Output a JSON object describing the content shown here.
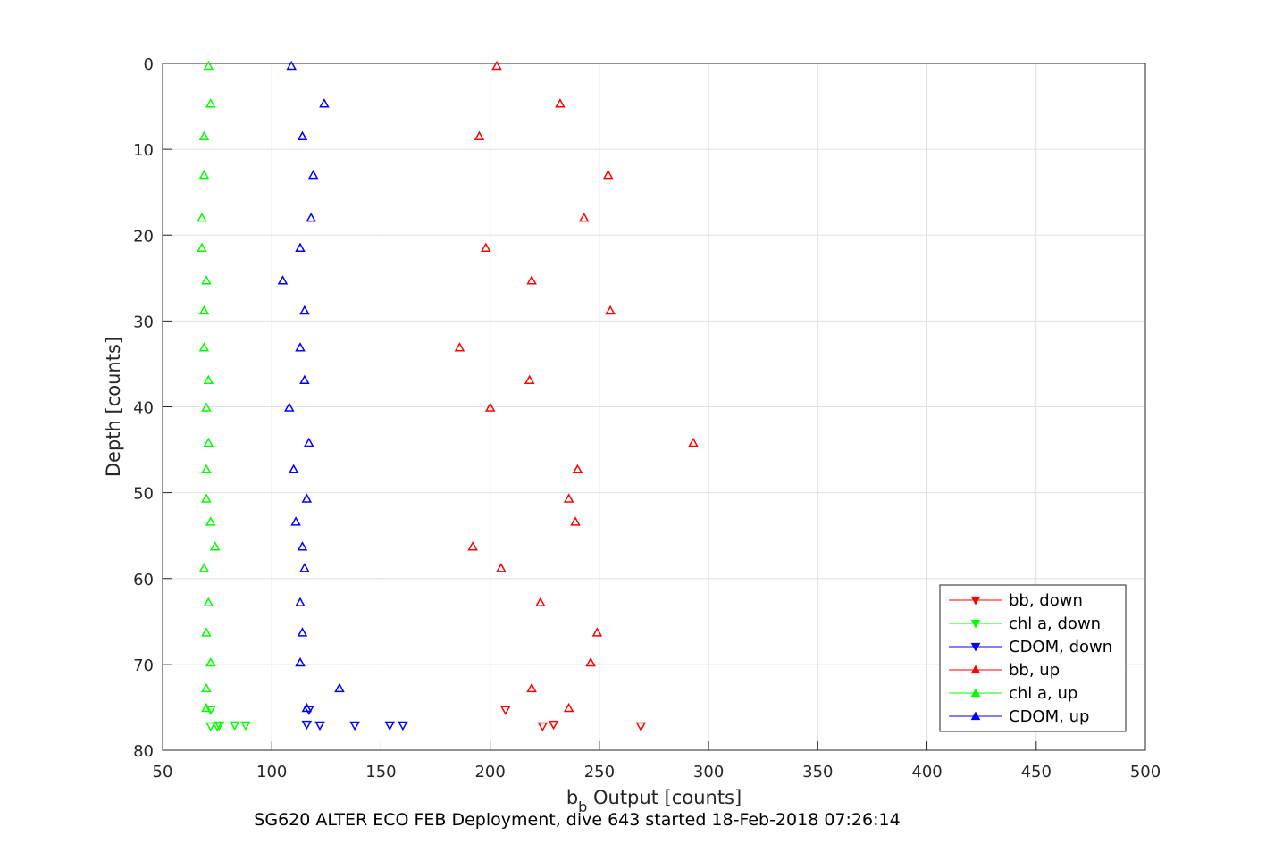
{
  "chart_data": {
    "type": "scatter",
    "xlabel": {
      "base": "b",
      "sub": "b",
      "rest": " Output [counts]"
    },
    "ylabel": "Depth [counts]",
    "footer": "SG620 ALTER ECO FEB Deployment, dive 643 started 18-Feb-2018 07:26:14",
    "xlim": [
      50,
      500
    ],
    "ylim": [
      0,
      80
    ],
    "y_reversed": true,
    "xticks": [
      50,
      100,
      150,
      200,
      250,
      300,
      350,
      400,
      450,
      500
    ],
    "yticks": [
      0,
      10,
      20,
      30,
      40,
      50,
      60,
      70,
      80
    ],
    "grid": true,
    "legend_position": "bottom-right",
    "series": [
      {
        "name": "bb, down",
        "color": "#ff0000",
        "marker": "triangle-down",
        "points": [
          [
            207,
            75.3
          ],
          [
            224,
            77.2
          ],
          [
            229,
            77.0
          ],
          [
            269,
            77.2
          ]
        ]
      },
      {
        "name": "chl a, down",
        "color": "#00ff00",
        "marker": "triangle-down",
        "points": [
          [
            72,
            75.3
          ],
          [
            72,
            77.2
          ],
          [
            75,
            77.2
          ],
          [
            76,
            77.1
          ],
          [
            83,
            77.1
          ],
          [
            88,
            77.1
          ]
        ]
      },
      {
        "name": "CDOM, down",
        "color": "#0000ff",
        "marker": "triangle-down",
        "points": [
          [
            117,
            75.3
          ],
          [
            116,
            77.0
          ],
          [
            122,
            77.1
          ],
          [
            138,
            77.1
          ],
          [
            154,
            77.1
          ],
          [
            160,
            77.1
          ]
        ]
      },
      {
        "name": "bb, up",
        "color": "#ff0000",
        "marker": "triangle-up",
        "points": [
          [
            203,
            0.3
          ],
          [
            232,
            4.7
          ],
          [
            195,
            8.5
          ],
          [
            254,
            13.0
          ],
          [
            243,
            18.0
          ],
          [
            198,
            21.5
          ],
          [
            219,
            25.3
          ],
          [
            255,
            28.8
          ],
          [
            186,
            33.1
          ],
          [
            218,
            36.9
          ],
          [
            200,
            40.1
          ],
          [
            293,
            44.2
          ],
          [
            240,
            47.3
          ],
          [
            236,
            50.7
          ],
          [
            239,
            53.4
          ],
          [
            192,
            56.3
          ],
          [
            205,
            58.8
          ],
          [
            223,
            62.8
          ],
          [
            249,
            66.3
          ],
          [
            246,
            69.8
          ],
          [
            219,
            72.8
          ],
          [
            236,
            75.1
          ]
        ]
      },
      {
        "name": "chl a, up",
        "color": "#00ff00",
        "marker": "triangle-up",
        "points": [
          [
            71,
            0.3
          ],
          [
            72,
            4.7
          ],
          [
            69,
            8.5
          ],
          [
            69,
            13.0
          ],
          [
            68,
            18.0
          ],
          [
            68,
            21.5
          ],
          [
            70,
            25.3
          ],
          [
            69,
            28.8
          ],
          [
            69,
            33.1
          ],
          [
            71,
            36.9
          ],
          [
            70,
            40.1
          ],
          [
            71,
            44.2
          ],
          [
            70,
            47.3
          ],
          [
            70,
            50.7
          ],
          [
            72,
            53.4
          ],
          [
            74,
            56.3
          ],
          [
            69,
            58.8
          ],
          [
            71,
            62.8
          ],
          [
            70,
            66.3
          ],
          [
            72,
            69.8
          ],
          [
            70,
            72.8
          ],
          [
            70,
            75.1
          ]
        ]
      },
      {
        "name": "CDOM, up",
        "color": "#0000ff",
        "marker": "triangle-up",
        "points": [
          [
            109,
            0.3
          ],
          [
            124,
            4.7
          ],
          [
            114,
            8.5
          ],
          [
            119,
            13.0
          ],
          [
            118,
            18.0
          ],
          [
            113,
            21.5
          ],
          [
            105,
            25.3
          ],
          [
            115,
            28.8
          ],
          [
            113,
            33.1
          ],
          [
            115,
            36.9
          ],
          [
            108,
            40.1
          ],
          [
            117,
            44.2
          ],
          [
            110,
            47.3
          ],
          [
            116,
            50.7
          ],
          [
            111,
            53.4
          ],
          [
            114,
            56.3
          ],
          [
            115,
            58.8
          ],
          [
            113,
            62.8
          ],
          [
            114,
            66.3
          ],
          [
            113,
            69.8
          ],
          [
            131,
            72.8
          ],
          [
            116,
            75.1
          ]
        ]
      }
    ]
  }
}
